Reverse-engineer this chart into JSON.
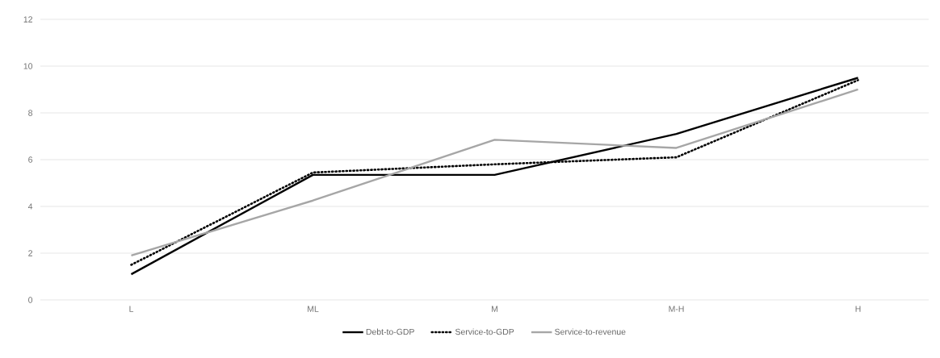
{
  "chart_data": {
    "type": "line",
    "categories": [
      "L",
      "ML",
      "M",
      "M-H",
      "H"
    ],
    "series": [
      {
        "name": "Debt-to-GDP",
        "color": "#000000",
        "line_style": "solid",
        "values": [
          1.1,
          5.35,
          5.35,
          7.1,
          9.5
        ]
      },
      {
        "name": "Service-to-GDP",
        "color": "#000000",
        "line_style": "dotted",
        "values": [
          1.5,
          5.45,
          5.8,
          6.1,
          9.4
        ]
      },
      {
        "name": "Service-to-revenue",
        "color": "#a6a6a6",
        "line_style": "solid",
        "values": [
          1.9,
          4.25,
          6.85,
          6.5,
          9.0
        ]
      }
    ],
    "ylim": [
      0,
      12
    ],
    "yticks": [
      0,
      2,
      4,
      6,
      8,
      10,
      12
    ],
    "grid": "y",
    "legend": "bottom",
    "marker": "none"
  }
}
